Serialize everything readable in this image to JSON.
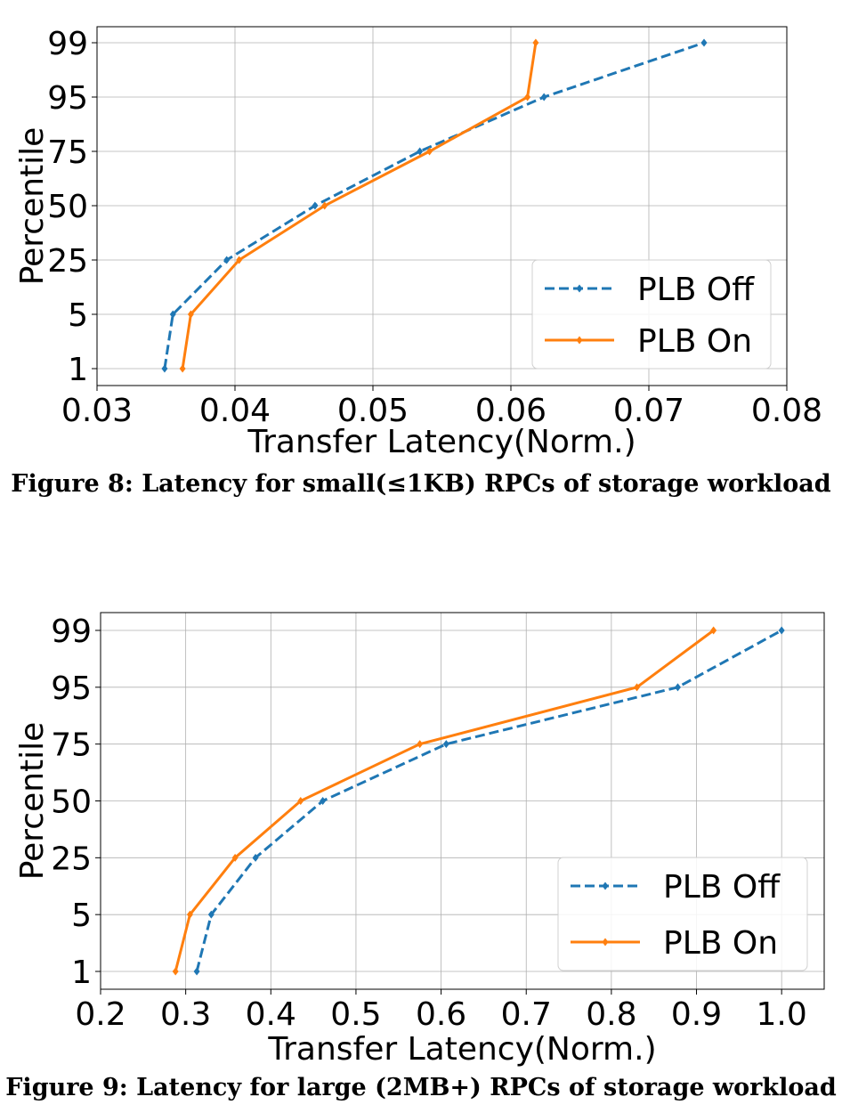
{
  "chart_data": [
    {
      "type": "line",
      "caption": "Figure 8: Latency for small(≤1KB) RPCs of storage workload",
      "xlabel": "Transfer Latency(Norm.)",
      "ylabel": "Percentile",
      "xlim": [
        0.03,
        0.08
      ],
      "xticks": [
        "0.03",
        "0.04",
        "0.05",
        "0.06",
        "0.07",
        "0.08"
      ],
      "yticks": [
        "1",
        "5",
        "25",
        "50",
        "75",
        "95",
        "99"
      ],
      "grid": true,
      "legend_position": "bottom-right",
      "series": [
        {
          "name": "PLB Off",
          "color": "#1f77b4",
          "linestyle": "dashed",
          "x": [
            0.0349,
            0.0355,
            0.0394,
            0.0458,
            0.0534,
            0.0624,
            0.074
          ],
          "y": [
            "1",
            "5",
            "25",
            "50",
            "75",
            "95",
            "99"
          ]
        },
        {
          "name": "PLB On",
          "color": "#ff7f0e",
          "linestyle": "solid",
          "x": [
            0.0362,
            0.0368,
            0.0403,
            0.0465,
            0.0541,
            0.0612,
            0.0618
          ],
          "y": [
            "1",
            "5",
            "25",
            "50",
            "75",
            "95",
            "99"
          ]
        }
      ]
    },
    {
      "type": "line",
      "caption": "Figure 9: Latency for large (2MB+) RPCs of storage workload",
      "xlabel": "Transfer Latency(Norm.)",
      "ylabel": "Percentile",
      "xlim": [
        0.2,
        1.05
      ],
      "xticks": [
        "0.2",
        "0.3",
        "0.4",
        "0.5",
        "0.6",
        "0.7",
        "0.8",
        "0.9",
        "1.0"
      ],
      "yticks": [
        "1",
        "5",
        "25",
        "50",
        "75",
        "95",
        "99"
      ],
      "grid": true,
      "legend_position": "bottom-right",
      "series": [
        {
          "name": "PLB Off",
          "color": "#1f77b4",
          "linestyle": "dashed",
          "x": [
            0.313,
            0.33,
            0.382,
            0.461,
            0.606,
            0.878,
            1.0
          ],
          "y": [
            "1",
            "5",
            "25",
            "50",
            "75",
            "95",
            "99"
          ]
        },
        {
          "name": "PLB On",
          "color": "#ff7f0e",
          "linestyle": "solid",
          "x": [
            0.288,
            0.305,
            0.358,
            0.435,
            0.575,
            0.83,
            0.92
          ],
          "y": [
            "1",
            "5",
            "25",
            "50",
            "75",
            "95",
            "99"
          ]
        }
      ]
    }
  ]
}
